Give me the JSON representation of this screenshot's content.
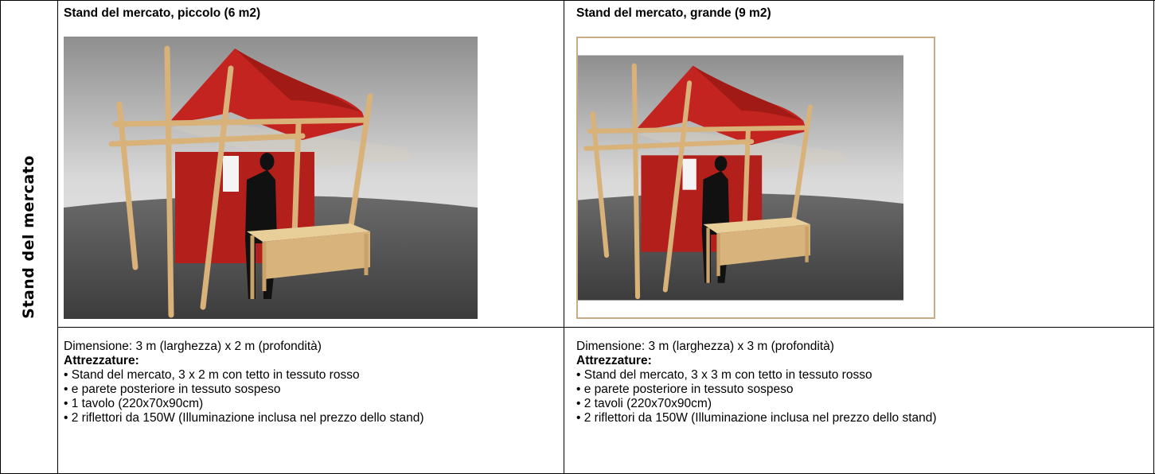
{
  "side_label": "Stand del mercato",
  "columns": [
    {
      "title": "Stand del mercato, piccolo (6 m2)",
      "dimension": "Dimensione: 3 m (larghezza) x 2 m (profondità)",
      "equipment_heading": "Attrezzature:",
      "items": [
        "• Stand del mercato, 3 x 2 m con tetto in tessuto rosso",
        "• e parete posteriore in tessuto sospeso",
        "• 1 tavolo (220x70x90cm)",
        "• 2 riflettori da 150W (Illuminazione inclusa nel prezzo dello stand)"
      ]
    },
    {
      "title": "Stand del mercato, grande (9 m2)",
      "dimension": "Dimensione: 3 m (larghezza) x 3 m (profondità)",
      "equipment_heading": "Attrezzature:",
      "items": [
        "• Stand del mercato, 3 x 3 m con tetto in tessuto rosso",
        "• e parete posteriore in tessuto sospeso",
        "• 2 tavoli (220x70x90cm)",
        "• 2 riflettori da 150W (Illuminazione inclusa nel prezzo dello stand)"
      ]
    }
  ]
}
